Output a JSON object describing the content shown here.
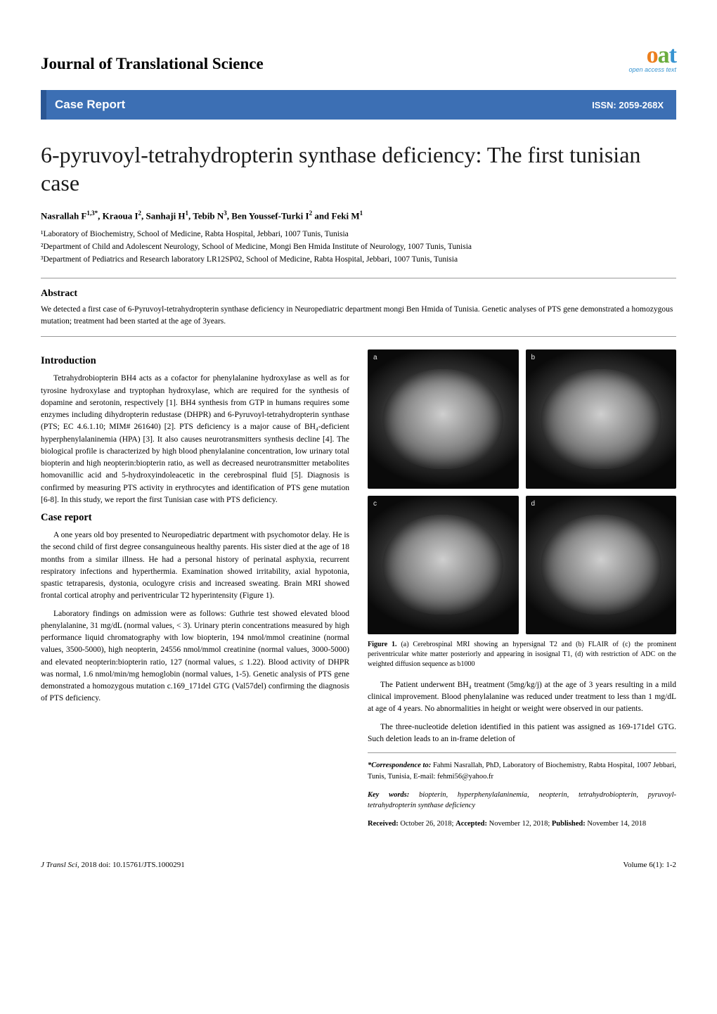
{
  "journal_title": "Journal of Translational Science",
  "logo": {
    "o": "o",
    "a": "a",
    "t": "t",
    "sub": "open access text"
  },
  "banner": {
    "report_type": "Case Report",
    "issn": "ISSN: 2059-268X"
  },
  "title": "6-pyruvoyl-tetrahydropterin synthase deficiency: The first tunisian case",
  "authors_html": "Nasrallah F<sup>1,3*</sup>, Kraoua I<sup>2</sup>, Sanhaji H<sup>1</sup>, Tebib N<sup>3</sup>, Ben Youssef-Turki I<sup>2</sup> and Feki M<sup>1</sup>",
  "affiliations": [
    "¹Laboratory of Biochemistry, School of Medicine, Rabta Hospital, Jebbari, 1007 Tunis, Tunisia",
    "²Department of Child and Adolescent Neurology, School of Medicine, Mongi Ben Hmida Institute of Neurology, 1007 Tunis, Tunisia",
    "³Department of Pediatrics and Research laboratory LR12SP02, School of Medicine, Rabta Hospital, Jebbari, 1007 Tunis, Tunisia"
  ],
  "abstract": {
    "heading": "Abstract",
    "body": "We detected a first case of 6-Pyruvoyl-tetrahydropterin synthase deficiency in Neuropediatric department mongi Ben Hmida of Tunisia. Genetic analyses of PTS gene demonstrated a homozygous mutation; treatment had been started at the age of 3years."
  },
  "left": {
    "intro_heading": "Introduction",
    "intro_p": "Tetrahydrobiopterin BH4 acts as a cofactor for phenylalanine hydroxylase as well as for tyrosine hydroxylase and tryptophan hydroxylase, which are required for the synthesis of dopamine and serotonin, respectively [1]. BH4 synthesis from GTP in humans requires some enzymes including dihydropterin redustase (DHPR) and 6-Pyruvoyl-tetrahydropterin synthase (PTS; EC 4.6.1.10; MIM# 261640) [2]. PTS deficiency is a major cause of BH₄-deficient hyperphenylalaninemia (HPA) [3]. It also causes neurotransmitters synthesis decline [4]. The biological profile is characterized by high blood phenylalanine concentration, low urinary total biopterin and high neopterin:biopterin ratio, as well as decreased neurotransmitter metabolites homovanillic acid and 5-hydroxyindoleacetic in the cerebrospinal fluid [5]. Diagnosis is confirmed by measuring PTS activity in erythrocytes and identification of PTS gene mutation [6-8]. In this study, we report the first Tunisian case with PTS deficiency.",
    "case_heading": "Case report",
    "case_p1": "A one years old boy presented to Neuropediatric department with psychomotor delay. He is the second child of first degree consanguineous healthy parents. His sister died at the age of 18 months from a similar illness. He had a personal history of perinatal asphyxia, recurrent respiratory infections and hyperthermia. Examination showed irritability, axial hypotonia, spastic tetraparesis, dystonia, oculogyre crisis and increased sweating. Brain MRI showed frontal cortical atrophy and periventricular T2 hyperintensity (Figure 1).",
    "case_p2": "Laboratory findings on admission were as follows: Guthrie test showed elevated blood phenylalanine, 31 mg/dL (normal values, < 3). Urinary pterin concentrations measured by high performance liquid chromatography with low biopterin, 194 nmol/mmol creatinine (normal values, 3500-5000), high neopterin, 24556 nmol/mmol creatinine (normal values, 3000-5000) and elevated neopterin:biopterin ratio, 127 (normal values, ≤ 1.22). Blood activity of DHPR was normal, 1.6 nmol/min/mg hemoglobin (normal values, 1-5). Genetic analysis of PTS gene demonstrated a homozygous mutation c.169_171del GTG (Val57del) confirming the diagnosis of PTS deficiency."
  },
  "figure": {
    "labels": [
      "a",
      "b",
      "c",
      "d"
    ],
    "caption_bold": "Figure 1.",
    "caption": " (a) Cerebrospinal MRI showing an hypersignal T2 and (b)  FLAIR of (c) the prominent periventricular white matter posteriorly and appearing in isosignal T1, (d) with restriction of ADC on the weighted diffusion sequence as b1000"
  },
  "right_paras": {
    "p1": "The Patient underwent BH₄ treatment (5mg/kg/j) at the age of 3 years resulting in a mild clinical improvement. Blood phenylalanine was reduced under treatment to less than 1 mg/dL at age of 4 years. No abnormalities in height or weight were observed in our patients.",
    "p2": "The three-nucleotide deletion identified in this patient was assigned as 169-171del GTG. Such deletion leads to an in-frame deletion of"
  },
  "correspondence": {
    "label": "*Correspondence to:",
    "text": " Fahmi Nasrallah, PhD, Laboratory of Biochemistry, Rabta Hospital, 1007 Jebbari, Tunis, Tunisia, E-mail: fehmi56@yahoo.fr"
  },
  "keywords": {
    "label": "Key words:",
    "text": " biopterin, hyperphenylalaninemia, neopterin, tetrahydrobiopterin, pyruvoyl-tetrahydropterin synthase deficiency"
  },
  "dates": {
    "received_label": "Received:",
    "received": " October 26, 2018; ",
    "accepted_label": "Accepted:",
    "accepted": " November 12, 2018; ",
    "published_label": "Published:",
    "published": " November 14, 2018"
  },
  "footer": {
    "left_italic": "J Transl Sci,",
    "left_rest": " 2018  doi: 10.15761/JTS.1000291",
    "right": "Volume 6(1): 1-2"
  }
}
